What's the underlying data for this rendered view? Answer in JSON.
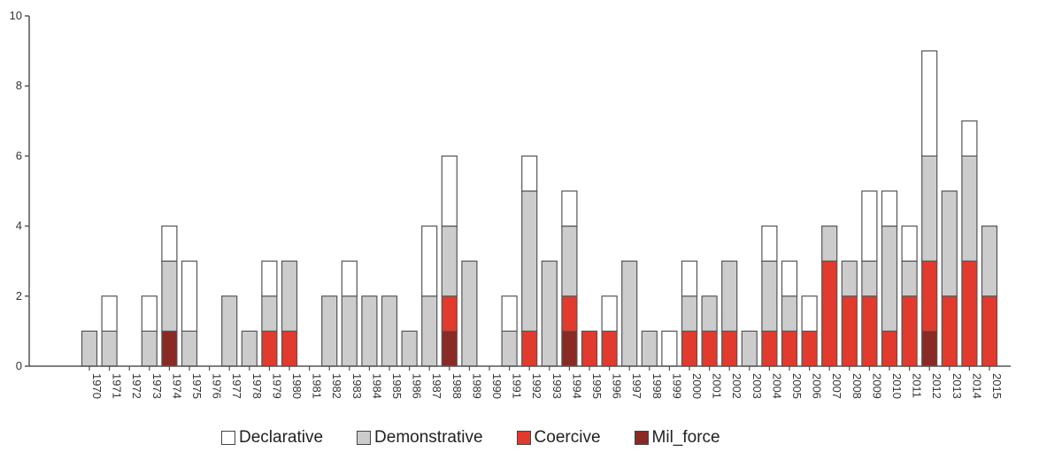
{
  "chart_data": {
    "type": "bar",
    "stacked": true,
    "title": "",
    "xlabel": "",
    "ylabel": "",
    "ylim": [
      0,
      10
    ],
    "yticks": [
      0,
      2,
      4,
      6,
      8,
      10
    ],
    "grid": false,
    "legend_position": "bottom",
    "categories": [
      "1970",
      "1971",
      "1972",
      "1973",
      "1974",
      "1975",
      "1976",
      "1977",
      "1978",
      "1979",
      "1980",
      "1981",
      "1982",
      "1983",
      "1984",
      "1985",
      "1986",
      "1987",
      "1988",
      "1989",
      "1990",
      "1991",
      "1992",
      "1993",
      "1994",
      "1995",
      "1996",
      "1997",
      "1998",
      "1999",
      "2000",
      "2001",
      "2002",
      "2003",
      "2004",
      "2005",
      "2006",
      "2007",
      "2008",
      "2009",
      "2010",
      "2011",
      "2012",
      "2013",
      "2014",
      "2015"
    ],
    "series": [
      {
        "name": "Mil_force",
        "color": "#8b2a24",
        "values": [
          0,
          0,
          0,
          0,
          1,
          0,
          0,
          0,
          0,
          0,
          0,
          0,
          0,
          0,
          0,
          0,
          0,
          0,
          1,
          0,
          0,
          0,
          0,
          0,
          1,
          0,
          0,
          0,
          0,
          0,
          0,
          0,
          0,
          0,
          0,
          0,
          0,
          0,
          0,
          0,
          0,
          0,
          1,
          0,
          0,
          0
        ]
      },
      {
        "name": "Coercive",
        "color": "#e23a2c",
        "values": [
          0,
          0,
          0,
          0,
          0,
          0,
          0,
          0,
          0,
          1,
          1,
          0,
          0,
          0,
          0,
          0,
          0,
          0,
          1,
          0,
          0,
          0,
          1,
          0,
          1,
          1,
          1,
          0,
          0,
          0,
          1,
          1,
          1,
          0,
          1,
          1,
          1,
          3,
          2,
          2,
          1,
          2,
          2,
          2,
          3,
          2
        ]
      },
      {
        "name": "Demonstrative",
        "color": "#cccccc",
        "values": [
          1,
          1,
          0,
          1,
          2,
          1,
          0,
          2,
          1,
          1,
          2,
          0,
          2,
          2,
          2,
          2,
          1,
          2,
          2,
          3,
          0,
          1,
          4,
          3,
          2,
          0,
          0,
          3,
          1,
          0,
          1,
          1,
          2,
          1,
          2,
          1,
          0,
          1,
          1,
          1,
          3,
          1,
          3,
          3,
          3,
          2
        ]
      },
      {
        "name": "Declarative",
        "color": "#ffffff",
        "values": [
          0,
          1,
          0,
          1,
          1,
          2,
          0,
          0,
          0,
          1,
          0,
          0,
          0,
          1,
          0,
          0,
          0,
          2,
          2,
          0,
          0,
          1,
          1,
          0,
          1,
          0,
          1,
          0,
          0,
          1,
          1,
          0,
          0,
          0,
          1,
          1,
          1,
          0,
          0,
          2,
          1,
          1,
          3,
          0,
          1,
          0
        ]
      }
    ]
  },
  "legend": {
    "items": [
      {
        "label": "Declarative",
        "color": "#ffffff"
      },
      {
        "label": "Demonstrative",
        "color": "#cccccc"
      },
      {
        "label": "Coercive",
        "color": "#e23a2c"
      },
      {
        "label": "Mil_force",
        "color": "#8b2a24"
      }
    ]
  }
}
